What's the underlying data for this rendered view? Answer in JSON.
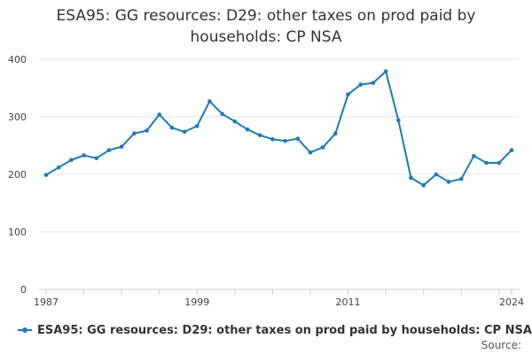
{
  "chart_data": {
    "type": "line",
    "title_lines": [
      "ESA95: GG resources: D29: other taxes on prod paid by",
      "households: CP NSA"
    ],
    "xlabel": "",
    "ylabel": "",
    "x": [
      1987,
      1988,
      1989,
      1990,
      1991,
      1992,
      1993,
      1994,
      1995,
      1996,
      1997,
      1998,
      1999,
      2000,
      2001,
      2002,
      2003,
      2004,
      2005,
      2006,
      2007,
      2008,
      2009,
      2010,
      2011,
      2012,
      2013,
      2014,
      2015,
      2016,
      2017,
      2018,
      2019,
      2020,
      2021,
      2022,
      2023,
      2024
    ],
    "x_tick_labels": [
      "1987",
      "1999",
      "2011",
      "2024"
    ],
    "x_tick_values": [
      1987,
      1999,
      2011,
      2024
    ],
    "ylim": [
      0,
      400
    ],
    "y_ticks": [
      0,
      100,
      200,
      300,
      400
    ],
    "series": [
      {
        "name": "ESA95: GG resources: D29: other taxes on prod paid by households: CP NSA",
        "color": "#1f7ab3",
        "values": [
          199,
          212,
          225,
          233,
          228,
          242,
          248,
          271,
          276,
          304,
          281,
          274,
          284,
          327,
          305,
          292,
          278,
          268,
          261,
          258,
          262,
          238,
          247,
          271,
          339,
          356,
          359,
          379,
          294,
          194,
          181,
          200,
          187,
          192,
          232,
          220,
          220,
          242
        ]
      }
    ],
    "legend_label": "ESA95: GG resources: D29: other taxes on prod paid by households: CP NSA",
    "legend_position": "bottom-left",
    "grid": true,
    "source_label": "Source:"
  }
}
